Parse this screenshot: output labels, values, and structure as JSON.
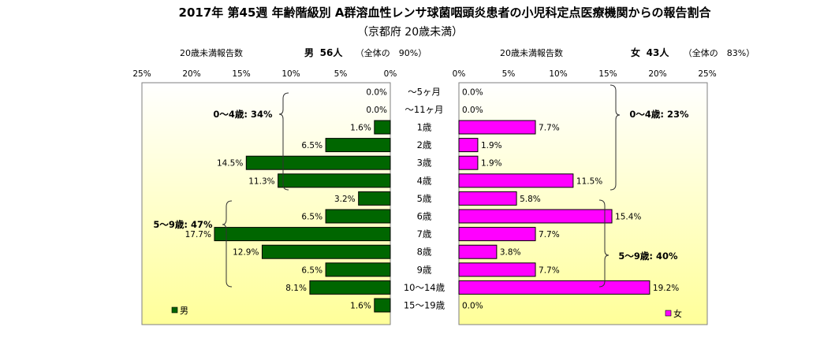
{
  "title": "2017年 第45週 年齢階級別 A群溶血性レンサ球菌咽頭炎患者の小児科定点医療機関からの報告割合",
  "subtitle": "（京都府 20歳未満）",
  "male_header": {
    "label": "20歳未満報告数",
    "sex": "男",
    "count": "56人",
    "share": "（全体の　90%）"
  },
  "female_header": {
    "label": "20歳未満報告数",
    "sex": "女",
    "count": "43人",
    "share": "（全体の　83%）"
  },
  "legend": {
    "male": "男",
    "female": "女"
  },
  "colors": {
    "male": "#006600",
    "female": "#ff00ff",
    "panel_top": "#ffffff",
    "panel_bottom": "#ffff99"
  },
  "annotations": {
    "male_0_4": "0～4歳: 34%",
    "male_5_9": "5～9歳: 47%",
    "female_0_4": "0～4歳: 23%",
    "female_5_9": "5～9歳: 40%"
  },
  "chart_data": {
    "type": "bar",
    "orientation": "horizontal",
    "layout": "population-pyramid",
    "categories": [
      "～5ヶ月",
      "～11ヶ月",
      "1歳",
      "2歳",
      "3歳",
      "4歳",
      "5歳",
      "6歳",
      "7歳",
      "8歳",
      "9歳",
      "10～14歳",
      "15～19歳"
    ],
    "x_ticks_male": [
      "25%",
      "20%",
      "15%",
      "10%",
      "5%",
      "0%"
    ],
    "x_ticks_female": [
      "0%",
      "5%",
      "10%",
      "15%",
      "20%",
      "25%"
    ],
    "xlim": [
      0,
      25
    ],
    "series": [
      {
        "name": "男",
        "values": [
          0.0,
          0.0,
          1.6,
          6.5,
          14.5,
          11.3,
          3.2,
          6.5,
          17.7,
          12.9,
          6.5,
          8.1,
          1.6
        ],
        "labels": [
          "0.0%",
          "0.0%",
          "1.6%",
          "6.5%",
          "14.5%",
          "11.3%",
          "3.2%",
          "6.5%",
          "17.7%",
          "12.9%",
          "6.5%",
          "8.1%",
          "1.6%"
        ]
      },
      {
        "name": "女",
        "values": [
          0.0,
          0.0,
          7.7,
          1.9,
          1.9,
          11.5,
          5.8,
          15.4,
          7.7,
          3.8,
          7.7,
          19.2,
          0.0
        ],
        "labels": [
          "0.0%",
          "0.0%",
          "7.7%",
          "1.9%",
          "1.9%",
          "11.5%",
          "5.8%",
          "15.4%",
          "7.7%",
          "3.8%",
          "7.7%",
          "19.2%",
          "0.0%"
        ]
      }
    ]
  }
}
